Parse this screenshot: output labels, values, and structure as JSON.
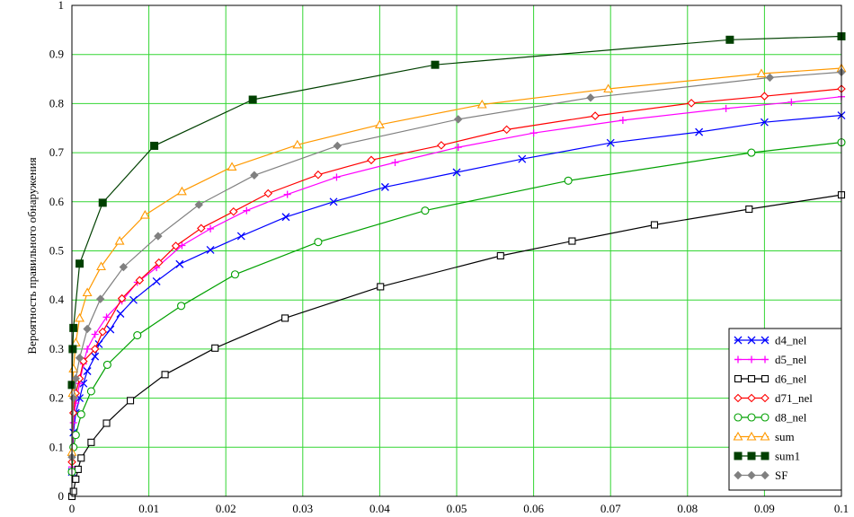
{
  "chart_data": {
    "type": "line",
    "title": "",
    "xlabel": "",
    "ylabel": "Вероятность правильного обнаружения",
    "xlim": [
      0,
      0.1
    ],
    "ylim": [
      0,
      1
    ],
    "grid": true,
    "grid_color": "#33d633",
    "legend_position": "bottom-right",
    "x_ticks": [
      "0",
      "0.01",
      "0.02",
      "0.03",
      "0.04",
      "0.05",
      "0.06",
      "0.07",
      "0.08",
      "0.09",
      "0.1"
    ],
    "y_ticks": [
      "0",
      "0.1",
      "0.2",
      "0.3",
      "0.4",
      "0.5",
      "0.6",
      "0.7",
      "0.8",
      "0.9",
      "1"
    ],
    "series": [
      {
        "name": "d4_nel",
        "color": "#0000ff",
        "marker": "x",
        "points": [
          [
            0,
            0.05
          ],
          [
            0.0002,
            0.13
          ],
          [
            0.0005,
            0.17
          ],
          [
            0.001,
            0.2
          ],
          [
            0.0015,
            0.23
          ],
          [
            0.002,
            0.255
          ],
          [
            0.003,
            0.285
          ],
          [
            0.0035,
            0.31
          ],
          [
            0.005,
            0.34
          ],
          [
            0.0063,
            0.372
          ],
          [
            0.008,
            0.4
          ],
          [
            0.011,
            0.438
          ],
          [
            0.014,
            0.473
          ],
          [
            0.018,
            0.502
          ],
          [
            0.022,
            0.53
          ],
          [
            0.0278,
            0.569
          ],
          [
            0.034,
            0.6
          ],
          [
            0.0407,
            0.63
          ],
          [
            0.05,
            0.66
          ],
          [
            0.0585,
            0.687
          ],
          [
            0.07,
            0.72
          ],
          [
            0.0815,
            0.742
          ],
          [
            0.09,
            0.762
          ],
          [
            0.1,
            0.776
          ]
        ]
      },
      {
        "name": "d5_nel",
        "color": "#ff00ff",
        "marker": "+",
        "points": [
          [
            0,
            0.06
          ],
          [
            0.0002,
            0.15
          ],
          [
            0.0005,
            0.19
          ],
          [
            0.001,
            0.23
          ],
          [
            0.0015,
            0.27
          ],
          [
            0.002,
            0.3
          ],
          [
            0.003,
            0.33
          ],
          [
            0.0045,
            0.365
          ],
          [
            0.0065,
            0.398
          ],
          [
            0.0085,
            0.436
          ],
          [
            0.011,
            0.466
          ],
          [
            0.0143,
            0.511
          ],
          [
            0.018,
            0.545
          ],
          [
            0.0227,
            0.582
          ],
          [
            0.028,
            0.615
          ],
          [
            0.0344,
            0.65
          ],
          [
            0.042,
            0.68
          ],
          [
            0.0502,
            0.711
          ],
          [
            0.06,
            0.74
          ],
          [
            0.0716,
            0.766
          ],
          [
            0.085,
            0.79
          ],
          [
            0.0935,
            0.803
          ],
          [
            0.1,
            0.814
          ]
        ]
      },
      {
        "name": "d6_nel",
        "color": "#000000",
        "marker": "square-open",
        "points": [
          [
            0,
            0.0
          ],
          [
            0.0002,
            0.01
          ],
          [
            0.0005,
            0.035
          ],
          [
            0.0008,
            0.055
          ],
          [
            0.0012,
            0.078
          ],
          [
            0.0025,
            0.11
          ],
          [
            0.0045,
            0.149
          ],
          [
            0.0076,
            0.195
          ],
          [
            0.0121,
            0.248
          ],
          [
            0.0186,
            0.302
          ],
          [
            0.0277,
            0.363
          ],
          [
            0.0401,
            0.427
          ],
          [
            0.0557,
            0.49
          ],
          [
            0.065,
            0.52
          ],
          [
            0.0757,
            0.553
          ],
          [
            0.088,
            0.585
          ],
          [
            0.1,
            0.614
          ]
        ]
      },
      {
        "name": "d71_nel",
        "color": "#ff0000",
        "marker": "diamond-open",
        "points": [
          [
            0,
            0.07
          ],
          [
            0.0002,
            0.17
          ],
          [
            0.0005,
            0.21
          ],
          [
            0.001,
            0.24
          ],
          [
            0.0015,
            0.275
          ],
          [
            0.003,
            0.3
          ],
          [
            0.004,
            0.335
          ],
          [
            0.0065,
            0.403
          ],
          [
            0.0088,
            0.44
          ],
          [
            0.0113,
            0.476
          ],
          [
            0.0135,
            0.51
          ],
          [
            0.0168,
            0.546
          ],
          [
            0.021,
            0.58
          ],
          [
            0.0255,
            0.617
          ],
          [
            0.032,
            0.655
          ],
          [
            0.0389,
            0.685
          ],
          [
            0.048,
            0.715
          ],
          [
            0.0565,
            0.747
          ],
          [
            0.068,
            0.775
          ],
          [
            0.0805,
            0.801
          ],
          [
            0.09,
            0.815
          ],
          [
            0.1,
            0.83
          ]
        ]
      },
      {
        "name": "d8_nel",
        "color": "#00a000",
        "marker": "circle-open",
        "points": [
          [
            0,
            0.05
          ],
          [
            0.0002,
            0.1
          ],
          [
            0.0005,
            0.125
          ],
          [
            0.0012,
            0.167
          ],
          [
            0.0025,
            0.214
          ],
          [
            0.0046,
            0.268
          ],
          [
            0.0085,
            0.328
          ],
          [
            0.0142,
            0.388
          ],
          [
            0.0212,
            0.452
          ],
          [
            0.032,
            0.518
          ],
          [
            0.0459,
            0.582
          ],
          [
            0.0645,
            0.643
          ],
          [
            0.0883,
            0.7
          ],
          [
            0.1,
            0.721
          ]
        ]
      },
      {
        "name": "sum",
        "color": "#ff9900",
        "marker": "triangle-open",
        "points": [
          [
            0,
            0.09
          ],
          [
            0.0001,
            0.21
          ],
          [
            0.0002,
            0.26
          ],
          [
            0.0005,
            0.313
          ],
          [
            0.001,
            0.363
          ],
          [
            0.002,
            0.415
          ],
          [
            0.0038,
            0.468
          ],
          [
            0.0062,
            0.52
          ],
          [
            0.0095,
            0.573
          ],
          [
            0.0143,
            0.621
          ],
          [
            0.0208,
            0.671
          ],
          [
            0.0293,
            0.716
          ],
          [
            0.04,
            0.757
          ],
          [
            0.0533,
            0.798
          ],
          [
            0.0697,
            0.83
          ],
          [
            0.0896,
            0.861
          ],
          [
            0.1,
            0.872
          ]
        ]
      },
      {
        "name": "sum1",
        "color": "#004000",
        "marker": "square-filled",
        "points": [
          [
            0,
            0.227
          ],
          [
            0.0001,
            0.3
          ],
          [
            0.0002,
            0.343
          ],
          [
            0.001,
            0.474
          ],
          [
            0.004,
            0.598
          ],
          [
            0.0107,
            0.714
          ],
          [
            0.0235,
            0.808
          ],
          [
            0.0472,
            0.879
          ],
          [
            0.0855,
            0.93
          ],
          [
            0.1,
            0.937
          ]
        ]
      },
      {
        "name": "SF",
        "color": "#808080",
        "marker": "diamond-filled",
        "points": [
          [
            0,
            0.08
          ],
          [
            0.0002,
            0.2
          ],
          [
            0.0005,
            0.24
          ],
          [
            0.001,
            0.282
          ],
          [
            0.002,
            0.341
          ],
          [
            0.0037,
            0.402
          ],
          [
            0.0067,
            0.467
          ],
          [
            0.0112,
            0.53
          ],
          [
            0.0165,
            0.594
          ],
          [
            0.0237,
            0.654
          ],
          [
            0.0345,
            0.714
          ],
          [
            0.0502,
            0.768
          ],
          [
            0.0674,
            0.812
          ],
          [
            0.0907,
            0.853
          ],
          [
            0.1,
            0.864
          ]
        ]
      }
    ]
  }
}
